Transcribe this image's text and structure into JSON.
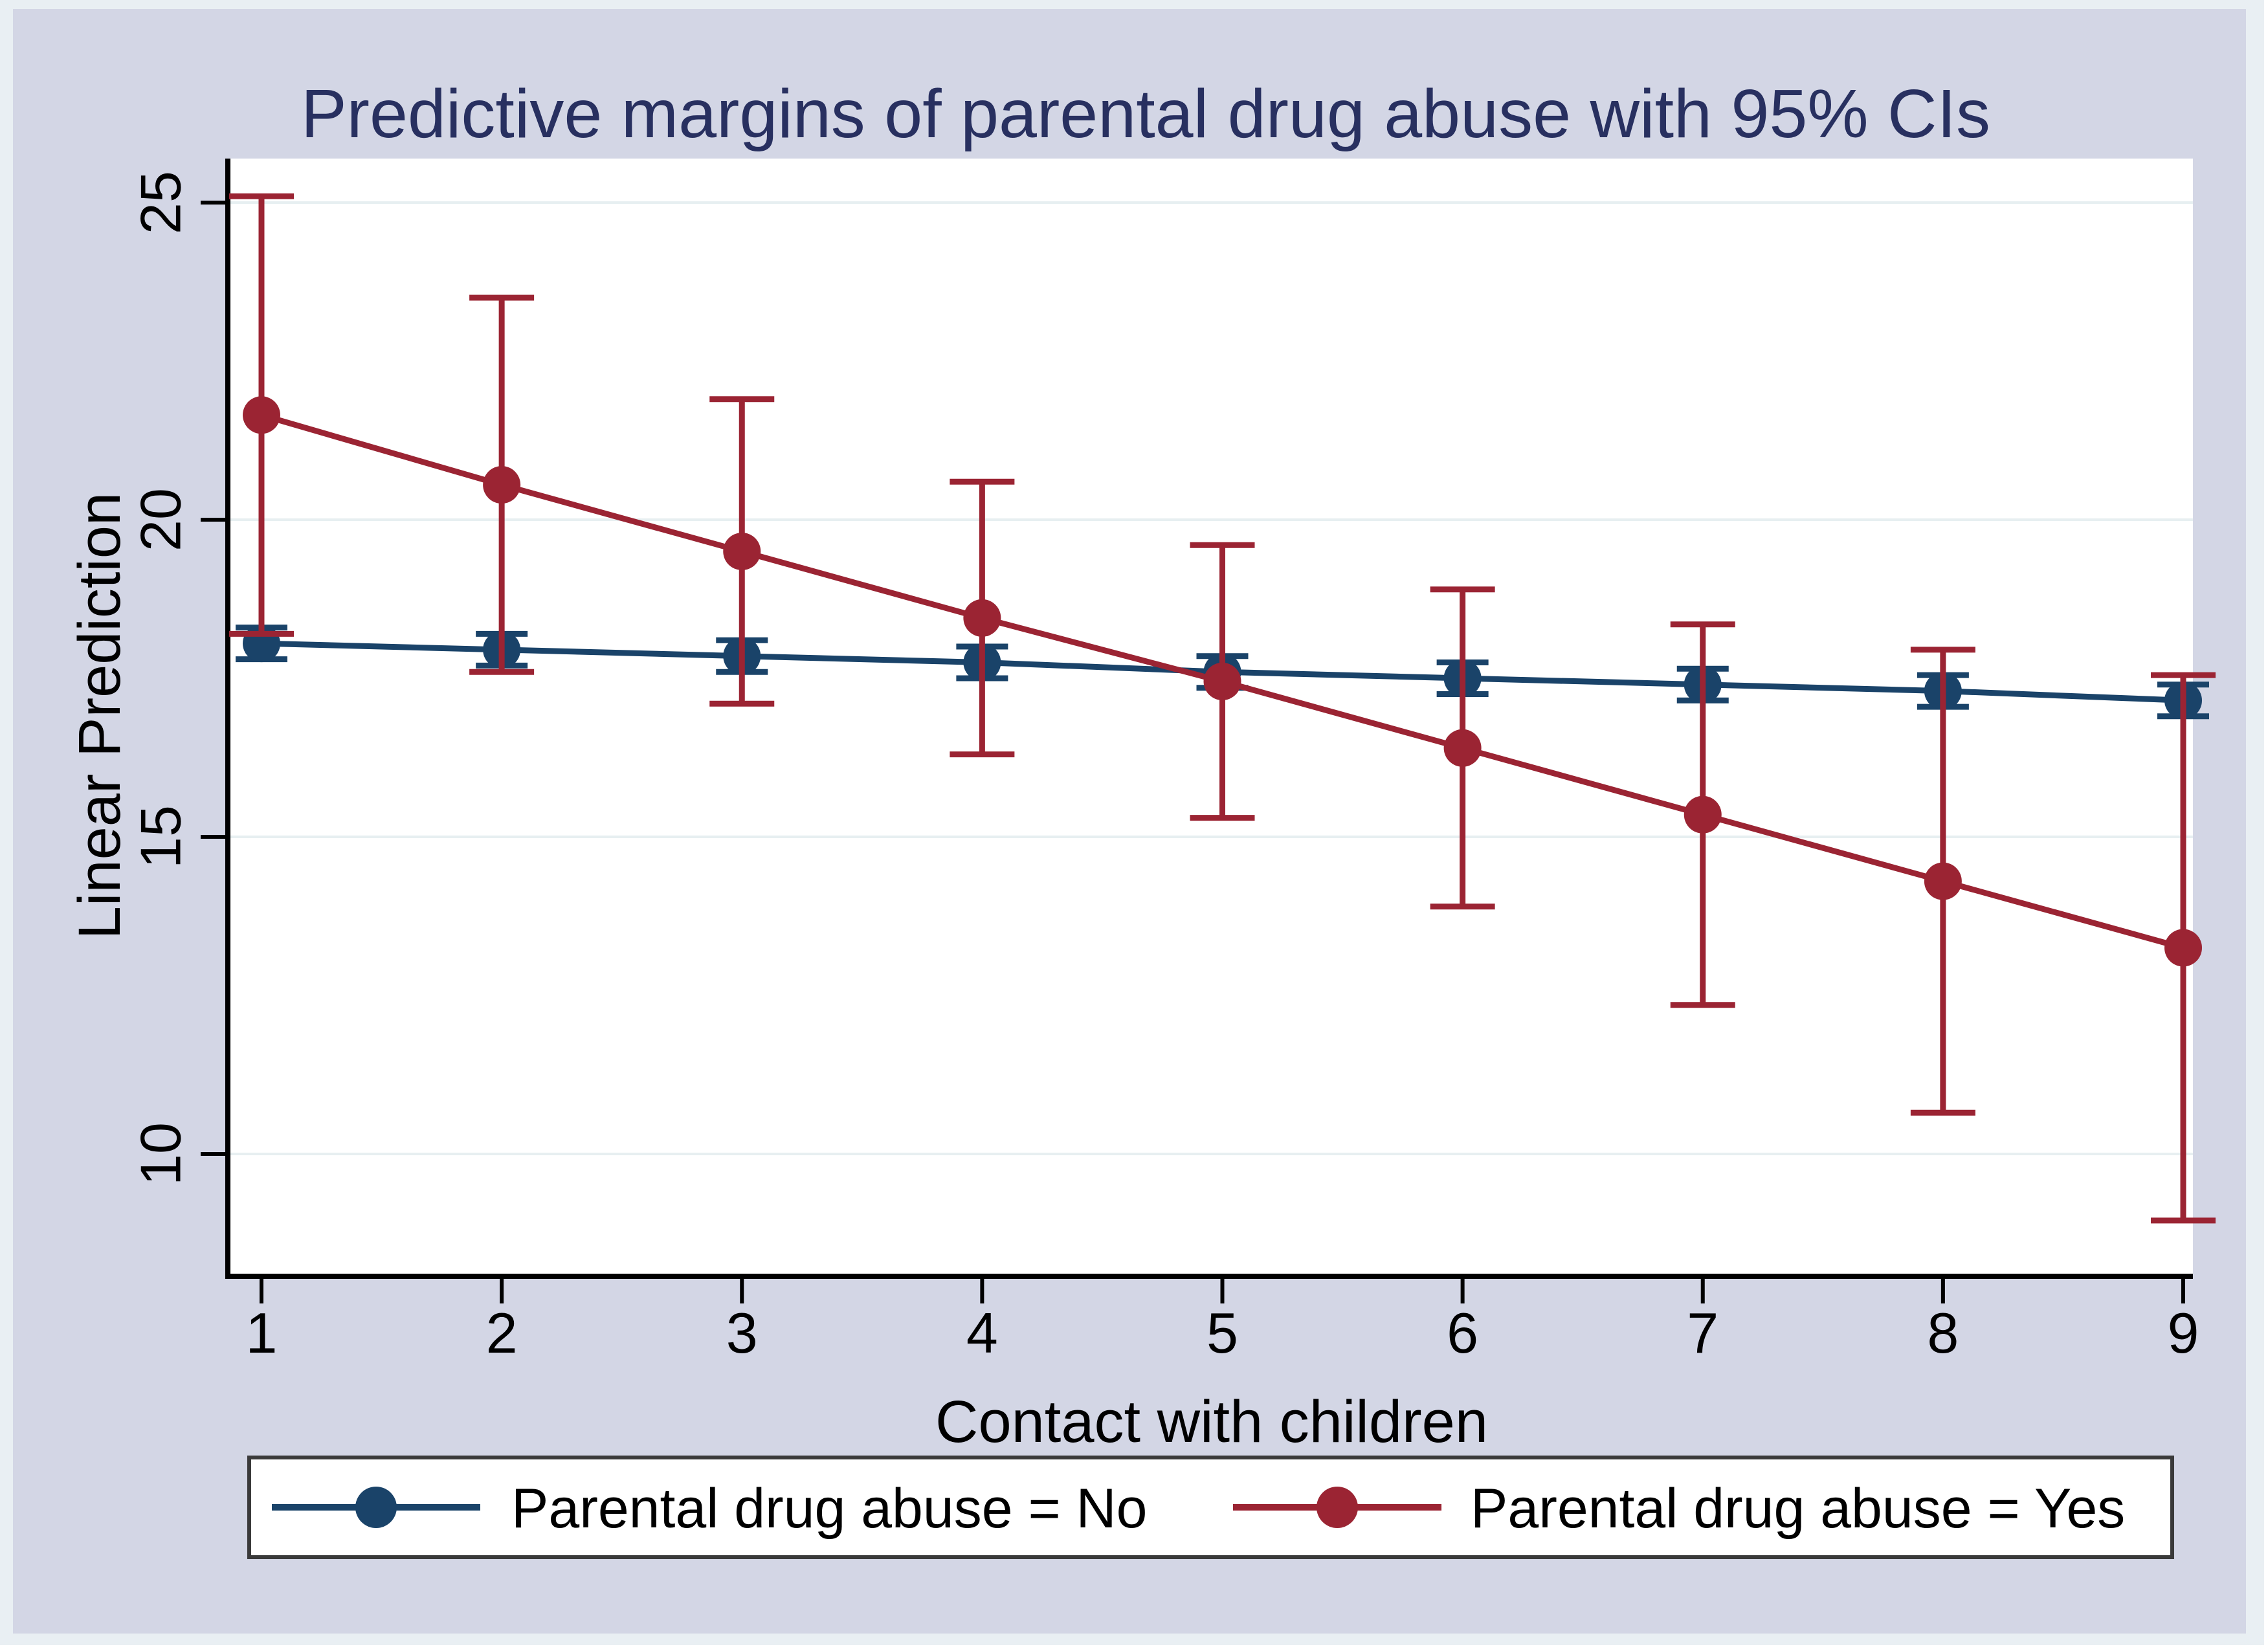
{
  "title": "Predictive margins of parental drug abuse with 95% CIs",
  "colors": {
    "graph_background": "#d3d6e5",
    "outer_edge": "#e9eff3",
    "plot_background": "#ffffff",
    "gridline": "#e7eff1",
    "axis": "#000000",
    "title_text": "#283060",
    "series_no": "#1a4369",
    "series_yes": "#9b2433",
    "legend_border": "#3a3a3a",
    "legend_fill": "#ffffff"
  },
  "chart_data": {
    "type": "line",
    "title": "Predictive margins of parental drug abuse with 95% CIs",
    "xlabel": "Contact with children",
    "ylabel": "Linear Prediction",
    "x": [
      1,
      2,
      3,
      4,
      5,
      6,
      7,
      8,
      9
    ],
    "x_tick_labels": [
      "1",
      "2",
      "3",
      "4",
      "5",
      "6",
      "7",
      "8",
      "9"
    ],
    "y_ticks": [
      10,
      15,
      20,
      25
    ],
    "y_tick_labels": [
      "10",
      "15",
      "20",
      "25"
    ],
    "xlim": [
      0.87,
      9.04
    ],
    "ylim": [
      8.1,
      25.7
    ],
    "grid": true,
    "grid_axis": "y",
    "legend_position": "bottom",
    "error_bars": "95% CI",
    "series": [
      {
        "name": "Parental drug abuse = No",
        "color": "#1a4369",
        "marker": "circle",
        "values": [
          18.05,
          17.95,
          17.85,
          17.75,
          17.6,
          17.5,
          17.4,
          17.3,
          17.15
        ],
        "ci_low": [
          17.8,
          17.7,
          17.6,
          17.5,
          17.35,
          17.25,
          17.15,
          17.05,
          16.9
        ],
        "ci_high": [
          18.3,
          18.2,
          18.1,
          18.0,
          17.85,
          17.75,
          17.65,
          17.55,
          17.4
        ]
      },
      {
        "name": "Parental drug abuse = Yes",
        "color": "#9b2433",
        "marker": "circle",
        "values": [
          21.65,
          20.55,
          19.5,
          18.45,
          17.45,
          16.4,
          15.35,
          14.3,
          13.25
        ],
        "ci_low": [
          18.2,
          17.6,
          17.1,
          16.3,
          15.3,
          13.9,
          12.35,
          10.65,
          8.95
        ],
        "ci_high": [
          25.1,
          23.5,
          21.9,
          20.6,
          19.6,
          18.9,
          18.35,
          17.95,
          17.55
        ]
      }
    ]
  }
}
